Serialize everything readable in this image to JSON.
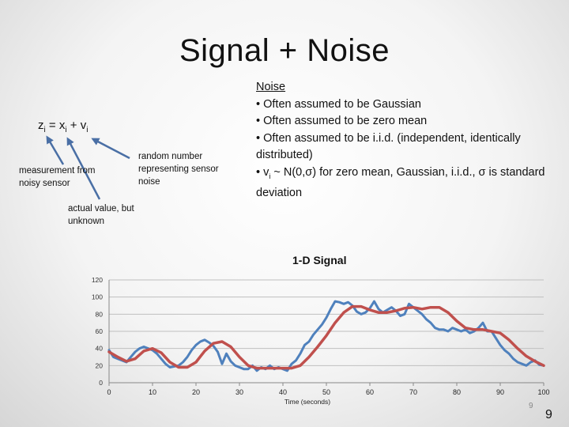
{
  "slide": {
    "title": "Signal + Noise",
    "equation": {
      "z": "z",
      "i": "i",
      "eq": " = ",
      "x": "x",
      "plus": " + ",
      "v": "v"
    },
    "labels": {
      "measurement": "measurement from noisy sensor",
      "actual": "actual value, but unknown",
      "random": "random number representing sensor noise"
    },
    "noise": {
      "heading": "Noise",
      "bullet1": "• Often assumed to be Gaussian",
      "bullet2": "• Often assumed to be zero mean",
      "bullet3": "• Often assumed to be i.i.d. (independent, identically distributed)",
      "bullet4_prefix": "• v",
      "bullet4_sub": "i",
      "bullet4_rest": " ~ N(0,σ) for zero mean, Gaussian, i.i.d., σ is standard deviation"
    },
    "page_number_small": "9",
    "page_number": "9"
  },
  "chart_data": {
    "type": "line",
    "title": "1-D Signal",
    "xlabel": "Time (seconds)",
    "ylabel": "",
    "xlim": [
      0,
      100
    ],
    "ylim": [
      0,
      120
    ],
    "xticks": [
      0,
      10,
      20,
      30,
      40,
      50,
      60,
      70,
      80,
      90,
      100
    ],
    "yticks": [
      0,
      20,
      40,
      60,
      80,
      100,
      120
    ],
    "grid": "horizontal",
    "series": [
      {
        "name": "",
        "color": "#4f81bd",
        "x": [
          0,
          1,
          2,
          3,
          4,
          5,
          6,
          7,
          8,
          9,
          10,
          11,
          12,
          13,
          14,
          15,
          16,
          17,
          18,
          19,
          20,
          21,
          22,
          23,
          24,
          25,
          26,
          27,
          28,
          29,
          30,
          31,
          32,
          33,
          34,
          35,
          36,
          37,
          38,
          39,
          40,
          41,
          42,
          43,
          44,
          45,
          46,
          47,
          48,
          49,
          50,
          51,
          52,
          53,
          54,
          55,
          56,
          57,
          58,
          59,
          60,
          61,
          62,
          63,
          64,
          65,
          66,
          67,
          68,
          69,
          70,
          71,
          72,
          73,
          74,
          75,
          76,
          77,
          78,
          79,
          80,
          81,
          82,
          83,
          84,
          85,
          86,
          87,
          88,
          89,
          90,
          91,
          92,
          93,
          94,
          95,
          96,
          97,
          98,
          99,
          100
        ],
        "values": [
          38,
          30,
          28,
          26,
          24,
          30,
          36,
          40,
          42,
          40,
          38,
          34,
          28,
          22,
          18,
          19,
          20,
          24,
          30,
          38,
          44,
          48,
          50,
          47,
          43,
          36,
          22,
          34,
          25,
          20,
          18,
          16,
          16,
          20,
          14,
          18,
          16,
          20,
          16,
          18,
          16,
          14,
          22,
          26,
          34,
          44,
          48,
          56,
          62,
          68,
          76,
          86,
          95,
          94,
          92,
          94,
          90,
          83,
          80,
          82,
          87,
          95,
          86,
          82,
          85,
          88,
          84,
          78,
          80,
          92,
          88,
          84,
          80,
          74,
          70,
          64,
          62,
          62,
          60,
          64,
          62,
          60,
          62,
          58,
          60,
          64,
          70,
          60,
          60,
          52,
          44,
          38,
          34,
          28,
          24,
          22,
          20,
          24,
          26,
          21,
          20
        ]
      },
      {
        "name": "",
        "color": "#c0504d",
        "x": [
          0,
          2,
          4,
          6,
          8,
          10,
          12,
          14,
          16,
          18,
          20,
          22,
          24,
          26,
          28,
          30,
          32,
          34,
          36,
          38,
          40,
          42,
          44,
          46,
          48,
          50,
          52,
          54,
          56,
          58,
          60,
          62,
          64,
          66,
          68,
          70,
          72,
          74,
          76,
          78,
          80,
          82,
          84,
          86,
          88,
          90,
          92,
          94,
          96,
          98,
          100
        ],
        "values": [
          36,
          30,
          25,
          28,
          37,
          40,
          35,
          24,
          18,
          18,
          24,
          37,
          46,
          48,
          42,
          30,
          20,
          17,
          17,
          17,
          17,
          17,
          20,
          30,
          42,
          55,
          70,
          82,
          89,
          89,
          85,
          82,
          82,
          84,
          87,
          88,
          86,
          88,
          88,
          82,
          72,
          64,
          62,
          62,
          60,
          58,
          50,
          40,
          31,
          25,
          20
        ]
      }
    ]
  }
}
